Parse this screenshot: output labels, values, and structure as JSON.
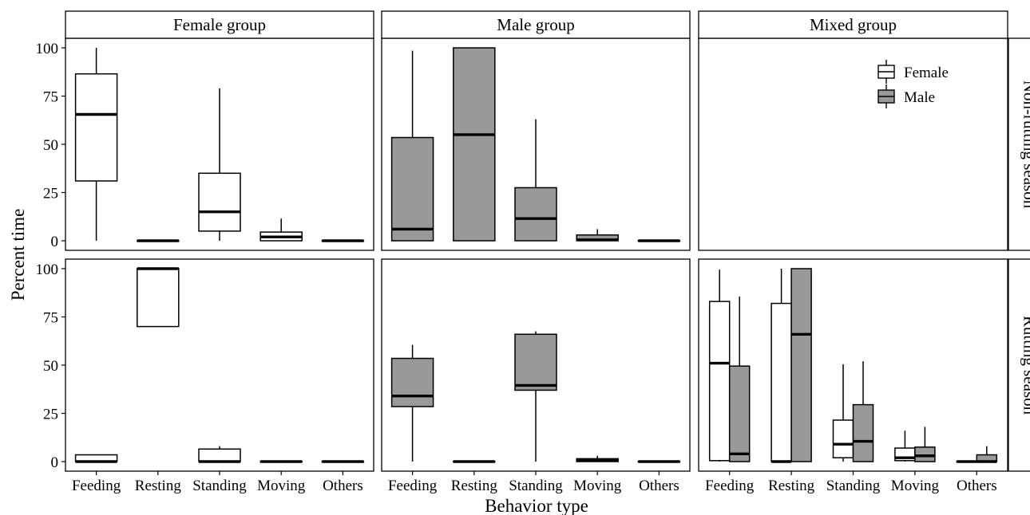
{
  "chart_data": {
    "type": "boxplot",
    "xlabel": "Behavior type",
    "ylabel": "Percent time",
    "ylim": [
      0,
      100
    ],
    "yticks": [
      0,
      25,
      50,
      75,
      100
    ],
    "categories": [
      "Feeding",
      "Resting",
      "Standing",
      "Moving",
      "Others"
    ],
    "column_facets": [
      "Female group",
      "Male group",
      "Mixed group"
    ],
    "row_facets": [
      "Non-rutting season",
      "Rutting season"
    ],
    "legend": {
      "position": "top-right (Mixed group, Non-rutting season panel)",
      "entries": [
        {
          "name": "Female",
          "color": "#ffffff"
        },
        {
          "name": "Male",
          "color": "#999999"
        }
      ]
    },
    "colors": {
      "Female": "#ffffff",
      "Male": "#999999",
      "border": "#000000"
    },
    "grid": false,
    "panels": [
      {
        "col": 0,
        "row": 0,
        "series": [
          {
            "name": "Female",
            "boxes": [
              {
                "category": "Feeding",
                "min": 0,
                "q1": 31,
                "median": 65.5,
                "q3": 86.5,
                "max": 100
              },
              {
                "category": "Resting",
                "min": 0,
                "q1": 0,
                "median": 0,
                "q3": 0,
                "max": 0
              },
              {
                "category": "Standing",
                "min": 0,
                "q1": 5,
                "median": 15,
                "q3": 35,
                "max": 79
              },
              {
                "category": "Moving",
                "min": 0,
                "q1": 0,
                "median": 2,
                "q3": 4.5,
                "max": 11.5
              },
              {
                "category": "Others",
                "min": 0,
                "q1": 0,
                "median": 0,
                "q3": 0,
                "max": 0
              }
            ]
          }
        ]
      },
      {
        "col": 1,
        "row": 0,
        "series": [
          {
            "name": "Male",
            "boxes": [
              {
                "category": "Feeding",
                "min": 0,
                "q1": 0,
                "median": 6,
                "q3": 53.5,
                "max": 98.5
              },
              {
                "category": "Resting",
                "min": 0,
                "q1": 0,
                "median": 55,
                "q3": 100,
                "max": 100
              },
              {
                "category": "Standing",
                "min": 0,
                "q1": 0,
                "median": 11.5,
                "q3": 27.5,
                "max": 63
              },
              {
                "category": "Moving",
                "min": 0,
                "q1": 0,
                "median": 0.5,
                "q3": 3,
                "max": 6
              },
              {
                "category": "Others",
                "min": 0,
                "q1": 0,
                "median": 0,
                "q3": 0,
                "max": 0
              }
            ]
          }
        ]
      },
      {
        "col": 2,
        "row": 0,
        "series": []
      },
      {
        "col": 0,
        "row": 1,
        "series": [
          {
            "name": "Female",
            "boxes": [
              {
                "category": "Feeding",
                "min": 0,
                "q1": 0,
                "median": 0,
                "q3": 3.5,
                "max": 3.5
              },
              {
                "category": "Resting",
                "min": 70,
                "q1": 70,
                "median": 100,
                "q3": 100,
                "max": 100
              },
              {
                "category": "Standing",
                "min": 0,
                "q1": 0,
                "median": 0,
                "q3": 6.5,
                "max": 8
              },
              {
                "category": "Moving",
                "min": 0,
                "q1": 0,
                "median": 0,
                "q3": 0,
                "max": 0
              },
              {
                "category": "Others",
                "min": 0,
                "q1": 0,
                "median": 0,
                "q3": 0,
                "max": 0
              }
            ]
          }
        ]
      },
      {
        "col": 1,
        "row": 1,
        "series": [
          {
            "name": "Male",
            "boxes": [
              {
                "category": "Feeding",
                "min": 0,
                "q1": 28.5,
                "median": 34,
                "q3": 53.5,
                "max": 60.5
              },
              {
                "category": "Resting",
                "min": 0,
                "q1": 0,
                "median": 0,
                "q3": 0,
                "max": 0
              },
              {
                "category": "Standing",
                "min": 0,
                "q1": 37,
                "median": 39.5,
                "q3": 66,
                "max": 67.5
              },
              {
                "category": "Moving",
                "min": 0,
                "q1": 0,
                "median": 0.5,
                "q3": 1.5,
                "max": 3
              },
              {
                "category": "Others",
                "min": 0,
                "q1": 0,
                "median": 0,
                "q3": 0,
                "max": 0
              }
            ]
          }
        ]
      },
      {
        "col": 2,
        "row": 1,
        "series": [
          {
            "name": "Female",
            "boxes": [
              {
                "category": "Feeding",
                "min": 0,
                "q1": 0.5,
                "median": 51,
                "q3": 83,
                "max": 99.5
              },
              {
                "category": "Resting",
                "min": 0,
                "q1": 0,
                "median": 0,
                "q3": 82,
                "max": 100
              },
              {
                "category": "Standing",
                "min": 0,
                "q1": 2,
                "median": 9,
                "q3": 21.5,
                "max": 50.5
              },
              {
                "category": "Moving",
                "min": 0,
                "q1": 0.5,
                "median": 2,
                "q3": 7,
                "max": 16
              },
              {
                "category": "Others",
                "min": 0,
                "q1": 0,
                "median": 0,
                "q3": 0,
                "max": 0
              }
            ]
          },
          {
            "name": "Male",
            "boxes": [
              {
                "category": "Feeding",
                "min": 0,
                "q1": 0,
                "median": 4,
                "q3": 49.5,
                "max": 85.5
              },
              {
                "category": "Resting",
                "min": 0,
                "q1": 0,
                "median": 66,
                "q3": 100,
                "max": 100
              },
              {
                "category": "Standing",
                "min": 0,
                "q1": 0,
                "median": 10.5,
                "q3": 29.5,
                "max": 52
              },
              {
                "category": "Moving",
                "min": 0,
                "q1": 0,
                "median": 3,
                "q3": 7.5,
                "max": 18
              },
              {
                "category": "Others",
                "min": 0,
                "q1": 0,
                "median": 0,
                "q3": 3.5,
                "max": 8
              }
            ]
          }
        ]
      }
    ]
  }
}
